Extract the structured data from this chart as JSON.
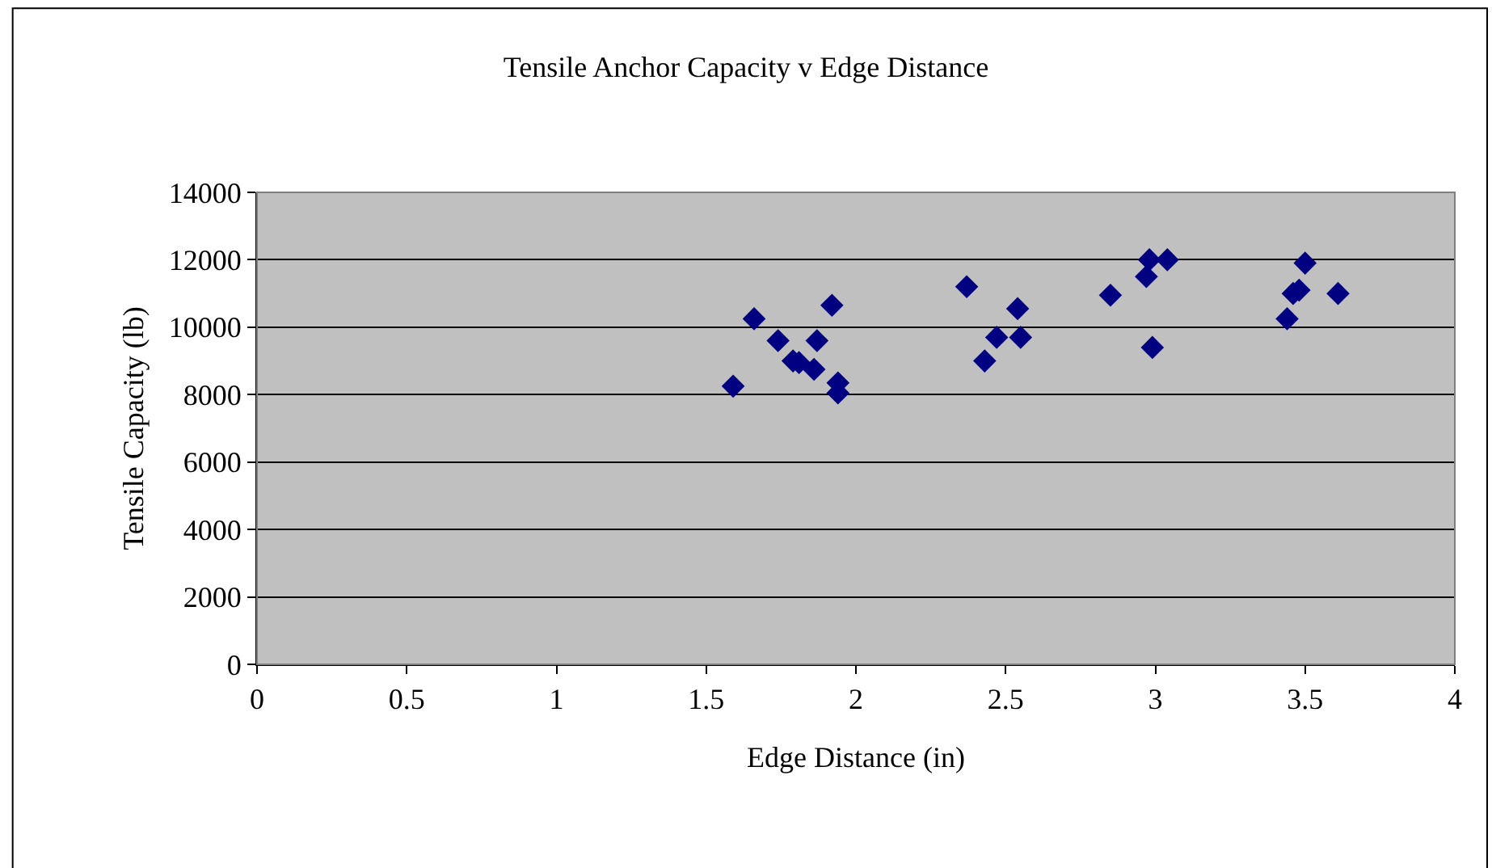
{
  "chart_data": {
    "type": "scatter",
    "title": "Tensile Anchor Capacity v Edge Distance",
    "xlabel": "Edge Distance (in)",
    "ylabel": "Tensile Capacity (lb)",
    "x": [
      1.59,
      1.66,
      1.74,
      1.79,
      1.81,
      1.86,
      1.87,
      1.92,
      1.94,
      1.94,
      2.37,
      2.43,
      2.47,
      2.54,
      2.55,
      2.85,
      2.97,
      2.98,
      2.99,
      3.04,
      3.44,
      3.46,
      3.48,
      3.5,
      3.61
    ],
    "values": [
      8250,
      10250,
      9600,
      9000,
      8950,
      8750,
      9600,
      10650,
      8350,
      8050,
      11200,
      9000,
      9700,
      10550,
      9700,
      10950,
      11500,
      12000,
      9400,
      12000,
      10250,
      11000,
      11100,
      11900,
      11000
    ],
    "color": "#000080",
    "marker": "diamond",
    "xlim": [
      0,
      4
    ],
    "xticks": [
      0,
      0.5,
      1,
      1.5,
      2,
      2.5,
      3,
      3.5,
      4
    ],
    "ylim": [
      0,
      14000
    ],
    "yticks": [
      0,
      2000,
      4000,
      6000,
      8000,
      10000,
      12000,
      14000
    ],
    "grid": "y"
  }
}
